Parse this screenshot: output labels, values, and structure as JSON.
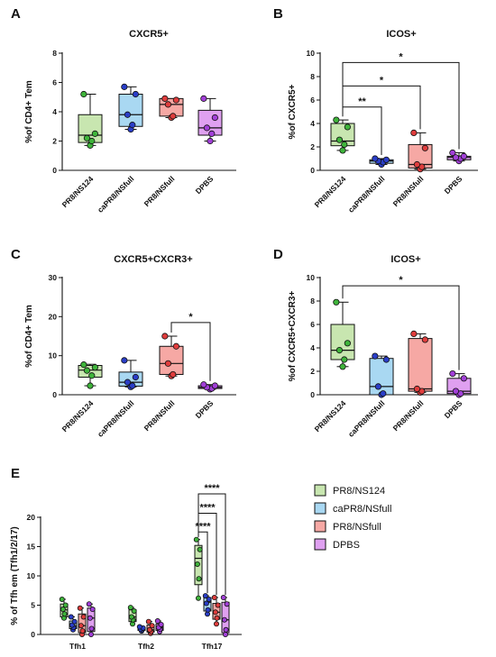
{
  "chart_data": [
    {
      "panel": "A",
      "type": "box",
      "title": "CXCR5+",
      "ylabel": "%of CD4+ Tem",
      "ylim": [
        0,
        8
      ],
      "yticks": [
        0,
        2,
        4,
        6,
        8
      ],
      "categories": [
        "PR8/NS124",
        "caPR8/NSfull",
        "PR8/NSfull",
        "DPBS"
      ],
      "series": [
        {
          "name": "PR8/NS124",
          "min": 1.7,
          "q1": 1.9,
          "median": 2.4,
          "q3": 3.8,
          "max": 5.2,
          "points": [
            1.7,
            2.0,
            2.2,
            2.5,
            5.2
          ]
        },
        {
          "name": "caPR8/NSfull",
          "min": 2.8,
          "q1": 3.0,
          "median": 3.8,
          "q3": 5.2,
          "max": 5.7,
          "points": [
            2.8,
            3.1,
            3.8,
            5.2,
            5.7
          ]
        },
        {
          "name": "PR8/NSfull",
          "min": 3.6,
          "q1": 3.7,
          "median": 4.5,
          "q3": 4.9,
          "max": 4.9,
          "points": [
            3.6,
            3.7,
            4.5,
            4.8,
            4.9
          ]
        },
        {
          "name": "DPBS",
          "min": 2.0,
          "q1": 2.4,
          "median": 2.9,
          "q3": 4.1,
          "max": 4.9,
          "points": [
            2.0,
            2.5,
            2.9,
            3.6,
            4.9
          ]
        }
      ],
      "significance": []
    },
    {
      "panel": "B",
      "type": "box",
      "title": "ICOS+",
      "ylabel": "%of CXCR5+",
      "ylim": [
        0,
        10
      ],
      "yticks": [
        0,
        2,
        4,
        6,
        8,
        10
      ],
      "categories": [
        "PR8/NS124",
        "caPR8/NSfull",
        "PR8/NSfull",
        "DPBS"
      ],
      "series": [
        {
          "name": "PR8/NS124",
          "min": 1.7,
          "q1": 2.1,
          "median": 2.5,
          "q3": 4.0,
          "max": 4.3,
          "points": [
            1.7,
            2.2,
            2.6,
            3.7,
            4.3
          ]
        },
        {
          "name": "caPR8/NSfull",
          "min": 0.5,
          "q1": 0.6,
          "median": 0.8,
          "q3": 0.9,
          "max": 1.0,
          "points": [
            0.5,
            0.7,
            0.8,
            0.9,
            1.0
          ]
        },
        {
          "name": "PR8/NSfull",
          "min": 0.1,
          "q1": 0.2,
          "median": 0.5,
          "q3": 2.2,
          "max": 3.2,
          "points": [
            0.1,
            0.3,
            0.5,
            1.9,
            3.2
          ]
        },
        {
          "name": "DPBS",
          "min": 0.8,
          "q1": 0.9,
          "median": 1.1,
          "q3": 1.2,
          "max": 1.5,
          "points": [
            0.8,
            1.0,
            1.1,
            1.2,
            1.5
          ]
        }
      ],
      "significance": [
        {
          "from": 0,
          "to": 1,
          "y": 5.4,
          "label": "**"
        },
        {
          "from": 0,
          "to": 2,
          "y": 7.2,
          "label": "*"
        },
        {
          "from": 0,
          "to": 3,
          "y": 9.2,
          "label": "*"
        }
      ]
    },
    {
      "panel": "C",
      "type": "box",
      "title": "CXCR5+CXCR3+",
      "ylabel": "%of CD4+ Tem",
      "ylim": [
        0,
        30
      ],
      "yticks": [
        0,
        10,
        20,
        30
      ],
      "categories": [
        "PR8/NS124",
        "caPR8/NSfull",
        "PR8/NSfull",
        "DPBS"
      ],
      "series": [
        {
          "name": "PR8/NS124",
          "min": 2.3,
          "q1": 4.5,
          "median": 6.3,
          "q3": 7.5,
          "max": 7.8,
          "points": [
            2.3,
            4.9,
            6.2,
            7.0,
            7.7
          ]
        },
        {
          "name": "caPR8/NSfull",
          "min": 2.0,
          "q1": 2.2,
          "median": 3.2,
          "q3": 5.8,
          "max": 8.8,
          "points": [
            2.0,
            2.3,
            3.2,
            4.5,
            8.8
          ]
        },
        {
          "name": "PR8/NSfull",
          "min": 4.8,
          "q1": 5.2,
          "median": 8.0,
          "q3": 12.4,
          "max": 15.0,
          "points": [
            4.8,
            5.2,
            8.0,
            12.4,
            15.0
          ]
        },
        {
          "name": "DPBS",
          "min": 1.4,
          "q1": 1.6,
          "median": 1.9,
          "q3": 2.3,
          "max": 2.6,
          "points": [
            1.4,
            1.6,
            1.9,
            2.3,
            2.6
          ]
        }
      ],
      "significance": [
        {
          "from": 2,
          "to": 3,
          "y": 18.5,
          "label": "*"
        }
      ]
    },
    {
      "panel": "D",
      "type": "box",
      "title": "ICOS+",
      "ylabel": "%of CXCR5+CXCR3+",
      "ylim": [
        0,
        10
      ],
      "yticks": [
        0,
        2,
        4,
        6,
        8,
        10
      ],
      "categories": [
        "PR8/NS124",
        "caPR8/NSfull",
        "PR8/NSfull",
        "DPBS"
      ],
      "series": [
        {
          "name": "PR8/NS124",
          "min": 2.4,
          "q1": 3.0,
          "median": 3.8,
          "q3": 6.0,
          "max": 7.9,
          "points": [
            2.4,
            3.0,
            3.8,
            4.4,
            7.9
          ]
        },
        {
          "name": "caPR8/NSfull",
          "min": 0.0,
          "q1": 0.0,
          "median": 0.7,
          "q3": 3.1,
          "max": 3.3,
          "points": [
            0.0,
            0.1,
            0.7,
            3.0,
            3.3
          ]
        },
        {
          "name": "PR8/NSfull",
          "min": 0.2,
          "q1": 0.3,
          "median": 0.5,
          "q3": 4.8,
          "max": 5.2,
          "points": [
            0.2,
            0.3,
            0.5,
            4.7,
            5.2
          ]
        },
        {
          "name": "DPBS",
          "min": 0.0,
          "q1": 0.1,
          "median": 0.3,
          "q3": 1.4,
          "max": 1.8,
          "points": [
            0.0,
            0.1,
            0.3,
            1.4,
            1.8
          ]
        }
      ],
      "significance": [
        {
          "from": 0,
          "to": 3,
          "y": 9.3,
          "label": "*"
        }
      ]
    },
    {
      "panel": "E",
      "type": "box",
      "title": "",
      "ylabel": "% of Tfh em (Tfh1/2/17)",
      "ylim": [
        0,
        20
      ],
      "yticks": [
        0,
        5,
        10,
        15,
        20
      ],
      "categories": [
        "Tfh1",
        "Tfh2",
        "Tfh17"
      ],
      "legend": [
        "PR8/NS124",
        "caPR8/NSfull",
        "PR8/NSfull",
        "DPBS"
      ],
      "groups": [
        {
          "category": "Tfh1",
          "series": [
            {
              "name": "PR8/NS124",
              "min": 2.8,
              "q1": 3.0,
              "median": 4.2,
              "q3": 5.2,
              "max": 6.0,
              "points": [
                2.8,
                3.5,
                4.3,
                5.0,
                6.0
              ]
            },
            {
              "name": "caPR8/NSfull",
              "min": 0.8,
              "q1": 1.0,
              "median": 1.5,
              "q3": 2.3,
              "max": 3.0,
              "points": [
                0.8,
                1.2,
                1.6,
                2.2,
                3.0
              ]
            },
            {
              "name": "PR8/NSfull",
              "min": 0.0,
              "q1": 0.3,
              "median": 1.5,
              "q3": 3.5,
              "max": 4.5,
              "points": [
                0.0,
                0.6,
                1.5,
                3.0,
                4.5
              ]
            },
            {
              "name": "DPBS",
              "min": 0.0,
              "q1": 0.5,
              "median": 2.8,
              "q3": 4.5,
              "max": 5.2,
              "points": [
                0.0,
                1.0,
                2.8,
                4.3,
                5.2
              ]
            }
          ]
        },
        {
          "category": "Tfh2",
          "series": [
            {
              "name": "PR8/NS124",
              "min": 1.8,
              "q1": 2.2,
              "median": 3.0,
              "q3": 4.2,
              "max": 4.6,
              "points": [
                1.8,
                2.5,
                3.0,
                4.0,
                4.6
              ]
            },
            {
              "name": "caPR8/NSfull",
              "min": 0.6,
              "q1": 0.7,
              "median": 0.9,
              "q3": 1.1,
              "max": 1.3,
              "points": [
                0.6,
                0.8,
                0.9,
                1.1,
                1.3
              ]
            },
            {
              "name": "PR8/NSfull",
              "min": 0.2,
              "q1": 0.4,
              "median": 0.8,
              "q3": 1.6,
              "max": 2.2,
              "points": [
                0.2,
                0.5,
                0.8,
                1.5,
                2.2
              ]
            },
            {
              "name": "DPBS",
              "min": 0.5,
              "q1": 0.7,
              "median": 1.2,
              "q3": 1.8,
              "max": 2.3,
              "points": [
                0.5,
                0.9,
                1.2,
                1.7,
                2.3
              ]
            }
          ]
        },
        {
          "category": "Tfh17",
          "series": [
            {
              "name": "PR8/NS124",
              "min": 6.2,
              "q1": 8.5,
              "median": 13.0,
              "q3": 15.2,
              "max": 16.2,
              "points": [
                6.2,
                9.5,
                12.0,
                14.5,
                16.2
              ]
            },
            {
              "name": "caPR8/NSfull",
              "min": 3.5,
              "q1": 4.0,
              "median": 5.5,
              "q3": 6.3,
              "max": 6.6,
              "points": [
                3.5,
                4.2,
                5.3,
                6.0,
                6.6
              ]
            },
            {
              "name": "PR8/NSfull",
              "min": 1.8,
              "q1": 2.6,
              "median": 3.8,
              "q3": 5.3,
              "max": 6.3,
              "points": [
                1.8,
                2.8,
                3.8,
                5.0,
                6.3
              ]
            },
            {
              "name": "DPBS",
              "min": 0.0,
              "q1": 0.3,
              "median": 2.5,
              "q3": 5.5,
              "max": 6.3,
              "points": [
                0.0,
                0.8,
                2.5,
                5.2,
                6.3
              ]
            }
          ]
        }
      ],
      "significance": [
        {
          "group": 2,
          "from": 0,
          "to": 1,
          "y": 17.5,
          "label": "****"
        },
        {
          "group": 2,
          "from": 0,
          "to": 2,
          "y": 20.7,
          "label": "****"
        },
        {
          "group": 2,
          "from": 0,
          "to": 3,
          "y": 24.0,
          "label": "****"
        }
      ]
    }
  ],
  "style": {
    "fills": [
      "#c8e6b0",
      "#a9d8f2",
      "#f6a8a4",
      "#dfa0f0"
    ],
    "dots": [
      "#3fb43b",
      "#2a3ec8",
      "#e03d3d",
      "#a23fd8"
    ],
    "axis": "#111111"
  }
}
